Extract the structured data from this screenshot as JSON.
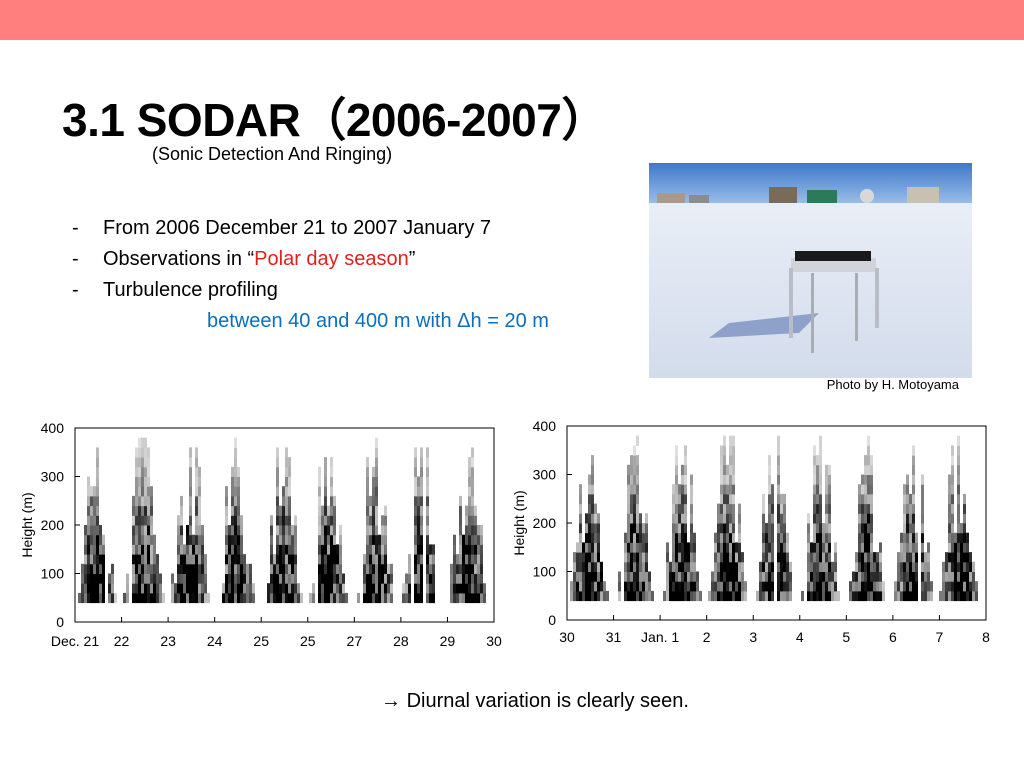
{
  "title": "3.1 SODAR（2006-2007）",
  "subtitle": "(Sonic Detection And Ringing)",
  "bullets": [
    {
      "dash": "-",
      "text": "From 2006 December 21 to 2007 January 7"
    },
    {
      "dash": "-",
      "parts": [
        "Observations in “",
        "Polar day season",
        "”"
      ]
    },
    {
      "dash": "-",
      "text": "Turbulence profiling"
    }
  ],
  "bullet_note": "between 40 and 400 m with Δh = 20 m",
  "photo_credit": "Photo by H. Motoyama",
  "figures": [
    {
      "ylabel": "Height (m)",
      "ylim": [
        0,
        400
      ],
      "yticks": [
        0,
        100,
        200,
        300,
        400
      ],
      "xticks": [
        "Dec. 21",
        "22",
        "23",
        "24",
        "25",
        "25",
        "27",
        "28",
        "29",
        "30"
      ]
    },
    {
      "ylabel": "Height (m)",
      "ylim": [
        0,
        400
      ],
      "yticks": [
        0,
        100,
        200,
        300,
        400
      ],
      "xticks": [
        "30",
        "31",
        "Jan. 1",
        "2",
        "3",
        "4",
        "5",
        "6",
        "7",
        "8"
      ]
    }
  ],
  "conclusion": "→ Diurnal variation is clearly seen."
}
